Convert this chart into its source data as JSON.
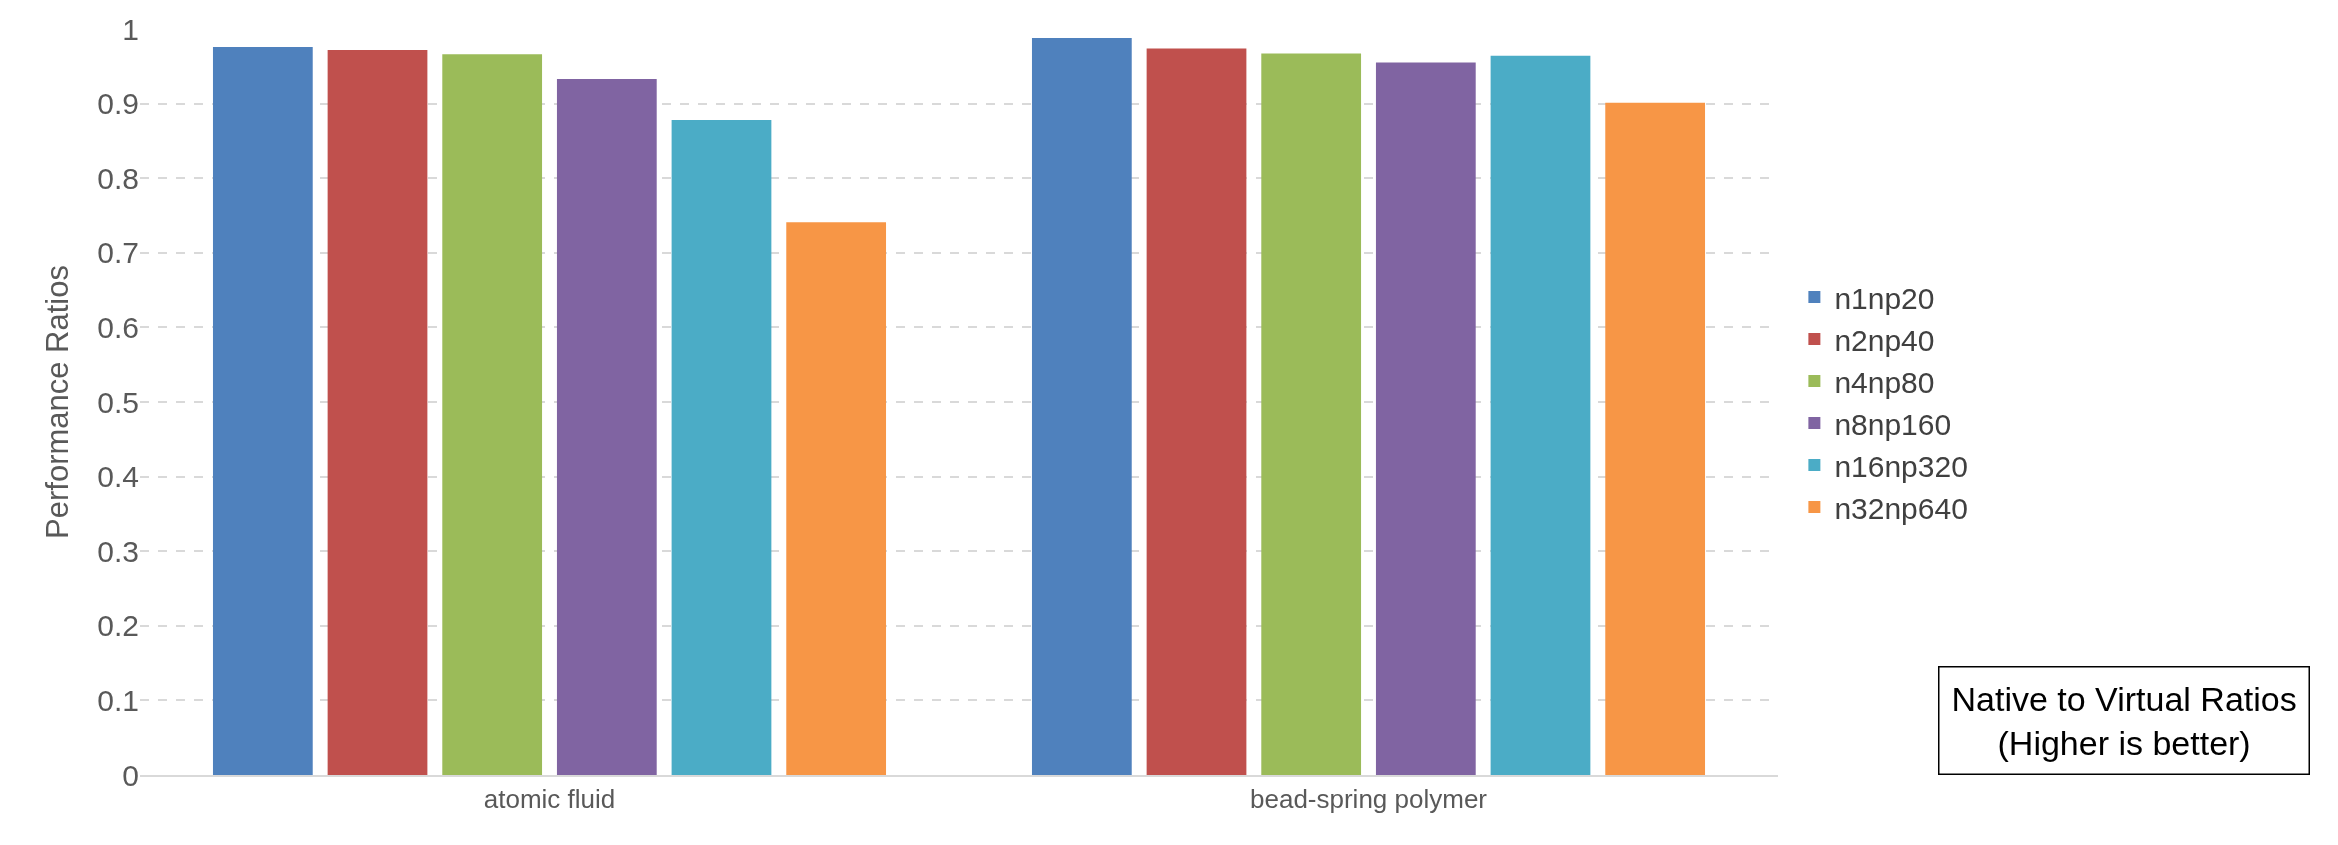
{
  "chart_data": {
    "type": "bar",
    "ylabel": "Performance Ratios",
    "categories": [
      "atomic fluid",
      "bead-spring polymer"
    ],
    "series": [
      {
        "name": "n1np20",
        "color": "#4f81bd",
        "values": [
          0.976,
          0.988
        ]
      },
      {
        "name": "n2np40",
        "color": "#c0504d",
        "values": [
          0.972,
          0.974
        ]
      },
      {
        "name": "n4np80",
        "color": "#9bbb59",
        "values": [
          0.966,
          0.967
        ]
      },
      {
        "name": "n8np160",
        "color": "#8064a2",
        "values": [
          0.933,
          0.955
        ]
      },
      {
        "name": "n16np320",
        "color": "#4bacc6",
        "values": [
          0.878,
          0.964
        ]
      },
      {
        "name": "n32np640",
        "color": "#f79646",
        "values": [
          0.741,
          0.901
        ]
      }
    ],
    "ylim": [
      0,
      1
    ],
    "yticks": [
      0,
      0.1,
      0.2,
      0.3,
      0.4,
      0.5,
      0.6,
      0.7,
      0.8,
      0.9,
      1
    ],
    "grid": "y",
    "legend": "right",
    "annotations": [
      "Native to Virtual Ratios\n(Higher is better)"
    ]
  }
}
